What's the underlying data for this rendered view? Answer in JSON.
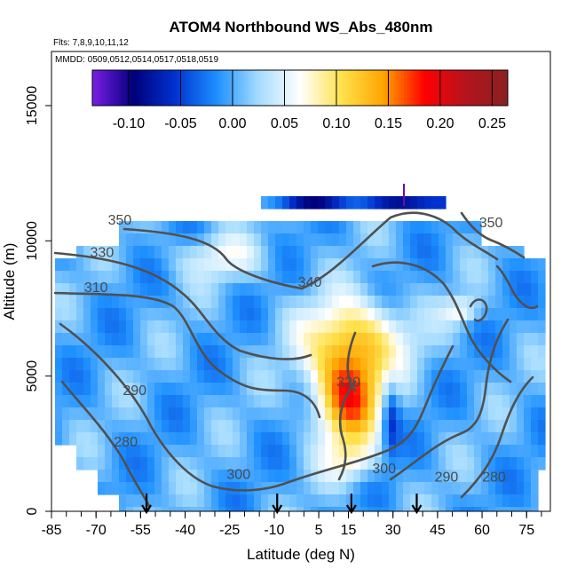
{
  "chart_data": {
    "type": "heatmap",
    "title": "ATOM4 Northbound WS_Abs_480nm",
    "subtitle_lines": [
      "Flts: 7,8,9,10,11,12",
      "MMDD: 0509,0512,0514,0517,0518,0519"
    ],
    "xlabel": "Latitude (deg N)",
    "ylabel": "Altitude (m)",
    "xlim": [
      -85,
      83
    ],
    "ylim": [
      0,
      17000
    ],
    "x_major_ticks": [
      -85,
      -70,
      -55,
      -40,
      -25,
      -10,
      5,
      15,
      30,
      45,
      60,
      75
    ],
    "y_major_ticks": [
      0,
      5000,
      10000,
      15000
    ],
    "colorbar": {
      "range": [
        -0.135,
        0.265
      ],
      "ticks": [
        -0.1,
        -0.05,
        0.0,
        0.05,
        0.1,
        0.15,
        0.2,
        0.25
      ],
      "tick_labels": [
        "-0.10",
        "-0.05",
        "0.00",
        "0.05",
        "0.10",
        "0.15",
        "0.20",
        "0.25"
      ],
      "colors": [
        "#7a1ee6",
        "#00007a",
        "#0033d0",
        "#1e90ff",
        "#a5dcff",
        "#ffffff",
        "#ffe24d",
        "#ffa500",
        "#ff0000",
        "#b4141e",
        "#8a2020"
      ]
    },
    "contour_labels": [
      {
        "text": "350",
        "lat": -62,
        "alt": 10800
      },
      {
        "text": "330",
        "lat": -68,
        "alt": 9600
      },
      {
        "text": "310",
        "lat": -70,
        "alt": 8300
      },
      {
        "text": "340",
        "lat": 2,
        "alt": 8500
      },
      {
        "text": "350",
        "lat": 63,
        "alt": 10700
      },
      {
        "text": "320",
        "lat": 15,
        "alt": 4800
      },
      {
        "text": "290",
        "lat": -57,
        "alt": 4500
      },
      {
        "text": "280",
        "lat": -60,
        "alt": 2600
      },
      {
        "text": "300",
        "lat": -22,
        "alt": 1400
      },
      {
        "text": "300",
        "lat": 27,
        "alt": 1600
      },
      {
        "text": "290",
        "lat": 48,
        "alt": 1300
      },
      {
        "text": "280",
        "lat": 64,
        "alt": 1300
      }
    ],
    "flight_markers_lat": [
      -53,
      -9,
      16,
      38
    ],
    "colors": {
      "contour": "#505050",
      "marker_top": "#6a0dad"
    }
  }
}
